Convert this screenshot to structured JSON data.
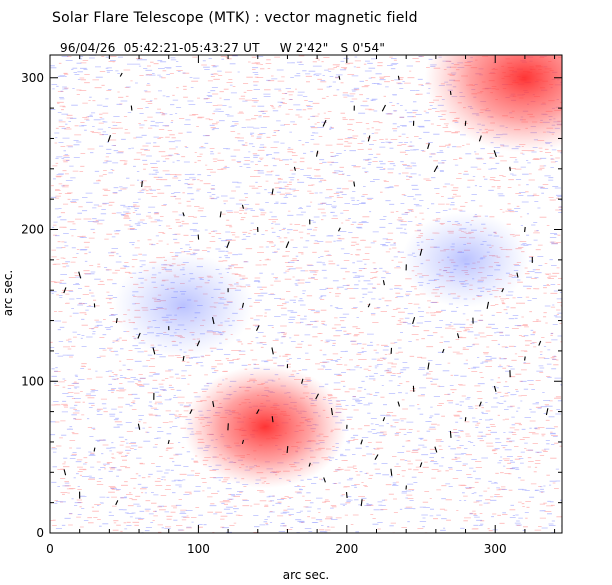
{
  "header": {
    "title": "Solar Flare Telescope (MTK) : vector magnetic field",
    "date": "96/04/26",
    "time_range": "05:42:21-05:43:27 UT",
    "position_w": "W 2'42\"",
    "position_s": "S 0'54\""
  },
  "chart_data": {
    "type": "heatmap",
    "title": "Solar Flare Telescope (MTK) : vector magnetic field",
    "xlabel": "arc sec.",
    "ylabel": "arc sec.",
    "xlim": [
      0,
      345
    ],
    "ylim": [
      0,
      315
    ],
    "xticks": [
      0,
      100,
      200,
      300
    ],
    "yticks": [
      0,
      100,
      200,
      300
    ],
    "xtick_labels": [
      "0",
      "100",
      "200",
      "300"
    ],
    "ytick_labels": [
      "0",
      "100",
      "200",
      "300"
    ],
    "grid": false,
    "colors": {
      "positive": "#ff3333",
      "negative": "#3344ff",
      "vector": "#000000"
    },
    "regions": [
      {
        "polarity": "positive",
        "x": 320,
        "y": 300,
        "strength": 1.0
      },
      {
        "polarity": "positive",
        "x": 145,
        "y": 70,
        "strength": 0.7
      },
      {
        "polarity": "negative",
        "x": 90,
        "y": 150,
        "strength": 0.5
      },
      {
        "polarity": "negative",
        "x": 280,
        "y": 180,
        "strength": 0.4
      }
    ],
    "vectors": [
      [
        48,
        302
      ],
      [
        55,
        280
      ],
      [
        62,
        230
      ],
      [
        40,
        260
      ],
      [
        90,
        210
      ],
      [
        100,
        195
      ],
      [
        115,
        210
      ],
      [
        120,
        190
      ],
      [
        130,
        215
      ],
      [
        140,
        200
      ],
      [
        150,
        225
      ],
      [
        160,
        190
      ],
      [
        165,
        240
      ],
      [
        175,
        205
      ],
      [
        180,
        250
      ],
      [
        185,
        270
      ],
      [
        195,
        300
      ],
      [
        205,
        280
      ],
      [
        215,
        260
      ],
      [
        225,
        280
      ],
      [
        235,
        300
      ],
      [
        245,
        270
      ],
      [
        255,
        255
      ],
      [
        260,
        240
      ],
      [
        270,
        290
      ],
      [
        280,
        270
      ],
      [
        290,
        260
      ],
      [
        300,
        250
      ],
      [
        310,
        240
      ],
      [
        320,
        200
      ],
      [
        10,
        160
      ],
      [
        20,
        170
      ],
      [
        30,
        150
      ],
      [
        45,
        140
      ],
      [
        60,
        130
      ],
      [
        70,
        120
      ],
      [
        80,
        135
      ],
      [
        90,
        115
      ],
      [
        100,
        125
      ],
      [
        110,
        140
      ],
      [
        120,
        160
      ],
      [
        130,
        150
      ],
      [
        140,
        135
      ],
      [
        150,
        120
      ],
      [
        160,
        110
      ],
      [
        170,
        100
      ],
      [
        180,
        90
      ],
      [
        190,
        80
      ],
      [
        200,
        70
      ],
      [
        210,
        60
      ],
      [
        220,
        50
      ],
      [
        230,
        40
      ],
      [
        240,
        30
      ],
      [
        250,
        45
      ],
      [
        260,
        55
      ],
      [
        270,
        65
      ],
      [
        280,
        75
      ],
      [
        290,
        85
      ],
      [
        300,
        95
      ],
      [
        310,
        105
      ],
      [
        320,
        115
      ],
      [
        330,
        125
      ],
      [
        10,
        40
      ],
      [
        20,
        25
      ],
      [
        30,
        55
      ],
      [
        45,
        20
      ],
      [
        60,
        70
      ],
      [
        70,
        90
      ],
      [
        80,
        60
      ],
      [
        95,
        80
      ],
      [
        110,
        85
      ],
      [
        120,
        70
      ],
      [
        130,
        60
      ],
      [
        140,
        80
      ],
      [
        150,
        75
      ],
      [
        160,
        55
      ],
      [
        175,
        45
      ],
      [
        185,
        35
      ],
      [
        200,
        25
      ],
      [
        210,
        20
      ],
      [
        225,
        75
      ],
      [
        235,
        85
      ],
      [
        245,
        95
      ],
      [
        255,
        110
      ],
      [
        265,
        120
      ],
      [
        275,
        130
      ],
      [
        285,
        140
      ],
      [
        295,
        150
      ],
      [
        305,
        160
      ],
      [
        315,
        170
      ],
      [
        325,
        180
      ],
      [
        335,
        80
      ],
      [
        215,
        150
      ],
      [
        225,
        165
      ],
      [
        240,
        175
      ],
      [
        250,
        185
      ],
      [
        195,
        200
      ],
      [
        205,
        230
      ],
      [
        230,
        120
      ],
      [
        245,
        140
      ]
    ]
  },
  "axes": {
    "x_title": "arc sec.",
    "y_title": "arc sec."
  }
}
